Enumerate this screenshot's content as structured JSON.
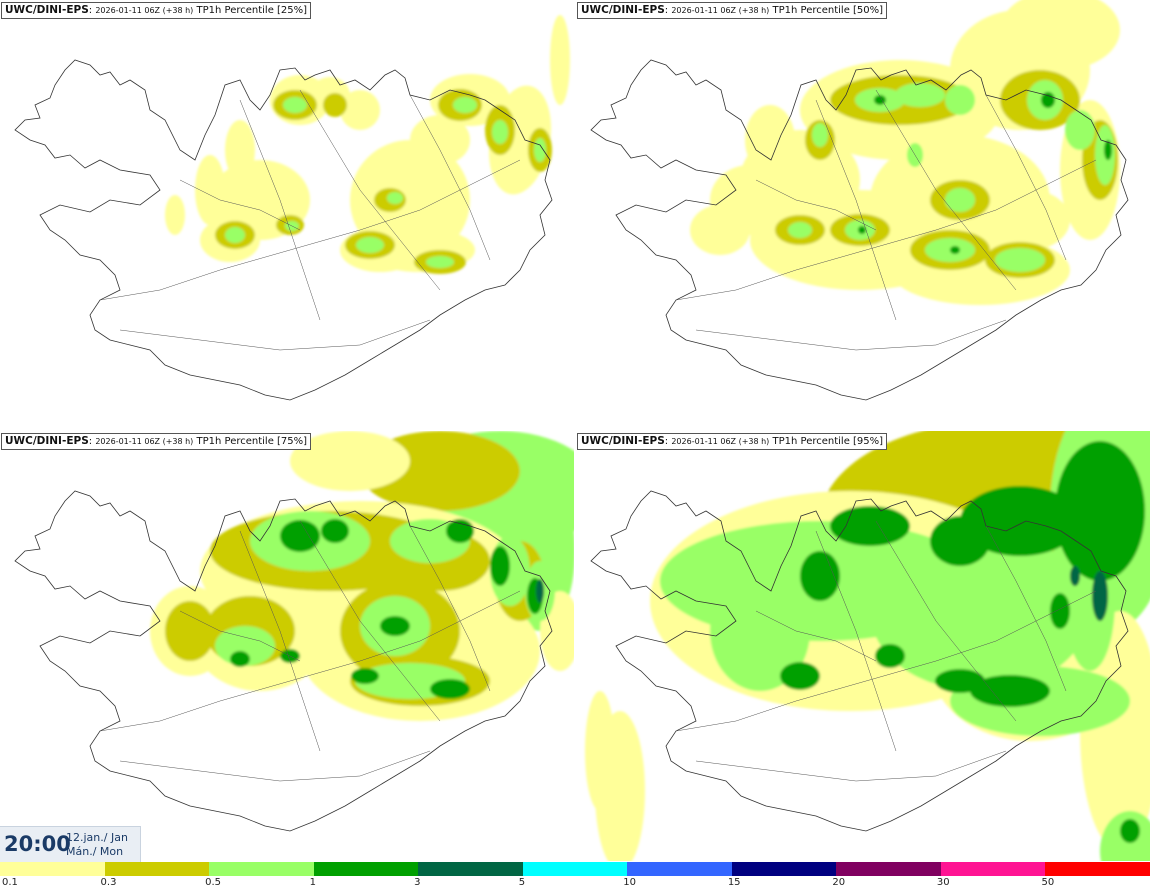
{
  "panels": [
    {
      "source": "UWC/DINI-EPS",
      "run": "2026-01-11 06Z (+38 h)",
      "label": "TP1h Percentile [25%]",
      "level": 0
    },
    {
      "source": "UWC/DINI-EPS",
      "run": "2026-01-11 06Z (+38 h)",
      "label": "TP1h Percentile [50%]",
      "level": 1
    },
    {
      "source": "UWC/DINI-EPS",
      "run": "2026-01-11 06Z (+38 h)",
      "label": "TP1h Percentile [75%]",
      "level": 2
    },
    {
      "source": "UWC/DINI-EPS",
      "run": "2026-01-11 06Z (+38 h)",
      "label": "TP1h Percentile [95%]",
      "level": 3
    }
  ],
  "valid_time": {
    "time": "20:00",
    "date_line1": "12.jan./ Jan",
    "date_line2": "Mán./ Mon"
  },
  "legend": {
    "colors": [
      "#ffff99",
      "#cccc00",
      "#99ff66",
      "#00a000",
      "#006644",
      "#00ffff",
      "#3366ff",
      "#000080",
      "#800060",
      "#ff1493",
      "#ff0000"
    ],
    "labels": [
      "0.1",
      "0.3",
      "0.5",
      "1",
      "3",
      "5",
      "10",
      "15",
      "20",
      "30",
      "50"
    ]
  }
}
